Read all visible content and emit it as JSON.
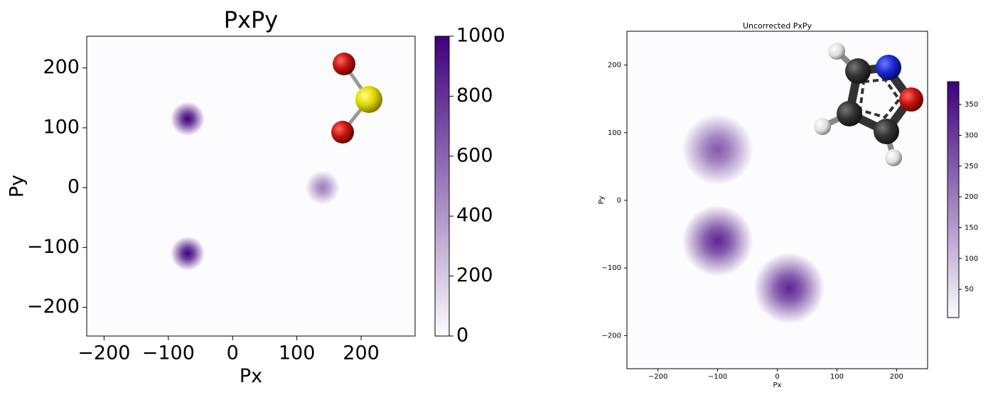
{
  "chart_data": [
    {
      "type": "heatmap",
      "title": "PxPy",
      "x_label": "Px",
      "y_label": "Py",
      "x": [
        -70,
        -70,
        140
      ],
      "y": [
        115,
        -110,
        0
      ],
      "values": [
        1000,
        1000,
        500
      ],
      "xlim": [
        -227,
        284
      ],
      "ylim": [
        -248,
        253
      ],
      "xticks": [
        {
          "value": -200,
          "label": "−200"
        },
        {
          "value": -100,
          "label": "−100"
        },
        0,
        100,
        200
      ],
      "yticks": [
        {
          "value": -200,
          "label": "−200"
        },
        {
          "value": -100,
          "label": "−100"
        },
        0,
        100,
        200
      ],
      "clim": [
        0,
        1000
      ],
      "cticks": [
        0,
        200,
        400,
        600,
        800,
        1000
      ],
      "colormap": [
        "#fcfbfd",
        "#3f007d"
      ]
    },
    {
      "type": "heatmap",
      "title": "Uncorrected PxPy",
      "x_label": "Px",
      "y_label": "Py",
      "x": [
        -100,
        -100,
        20
      ],
      "y": [
        75,
        -60,
        -130
      ],
      "values": [
        250,
        330,
        330
      ],
      "xlim": [
        -252,
        252
      ],
      "ylim": [
        -249,
        250
      ],
      "xticks": [
        {
          "value": -200,
          "label": "−200"
        },
        {
          "value": -100,
          "label": "−100"
        },
        0,
        100,
        200
      ],
      "yticks": [
        {
          "value": -200,
          "label": "−200"
        },
        {
          "value": -100,
          "label": "−100"
        },
        0,
        100,
        200
      ],
      "clim": [
        4,
        387
      ],
      "cticks": [
        50,
        100,
        150,
        200,
        250,
        300,
        350
      ],
      "colormap": [
        "#fcfbfd",
        "#3f007d"
      ]
    }
  ]
}
